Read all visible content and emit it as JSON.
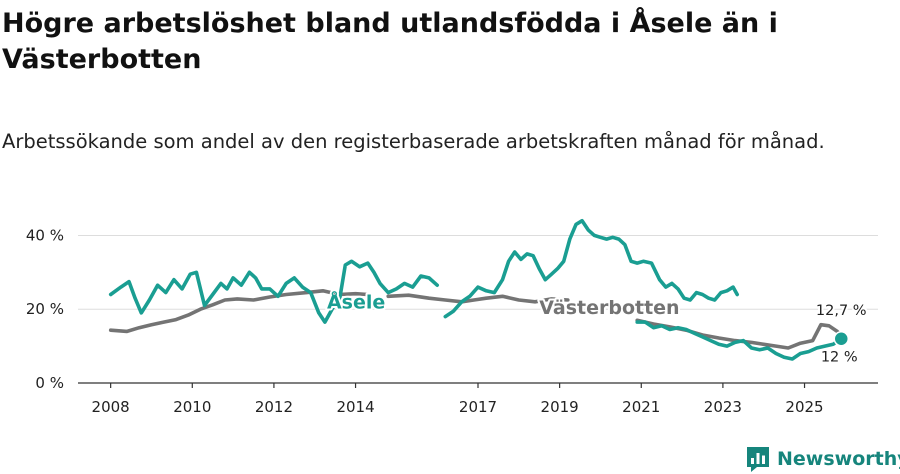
{
  "title": "Högre arbetslöshet bland utlandsfödda i Åsele än i Västerbotten",
  "subtitle": "Arbetssökande som andel av den registerbaserade arbetskraften månad för månad.",
  "brand": {
    "name": "Newsworthy"
  },
  "colors": {
    "asele": "#1a9e92",
    "vasterbotten": "#747474",
    "grid": "#dddddd",
    "text": "#222222"
  },
  "chart_data": {
    "type": "line",
    "x_unit": "year",
    "y_unit": "%",
    "xlim": [
      2007.2,
      2026.8
    ],
    "ylim": [
      0,
      45
    ],
    "x_ticks": [
      {
        "value": 2008,
        "label": "2008"
      },
      {
        "value": 2010,
        "label": "2010"
      },
      {
        "value": 2012,
        "label": "2012"
      },
      {
        "value": 2014,
        "label": "2014"
      },
      {
        "value": 2017,
        "label": "2017"
      },
      {
        "value": 2019,
        "label": "2019"
      },
      {
        "value": 2021,
        "label": "2021"
      },
      {
        "value": 2023,
        "label": "2023"
      },
      {
        "value": 2025,
        "label": "2025"
      }
    ],
    "y_ticks": [
      {
        "value": 0,
        "label": "0 %"
      },
      {
        "value": 20,
        "label": "20 %"
      },
      {
        "value": 40,
        "label": "40 %"
      }
    ],
    "series": [
      {
        "name": "Västerbotten",
        "color": "#747474",
        "label_at": [
          2018.5,
          20
        ],
        "end_label": "12,7 %",
        "segments": [
          [
            [
              2008.0,
              14.3
            ],
            [
              2008.4,
              14.0
            ],
            [
              2008.7,
              15.0
            ],
            [
              2009.0,
              15.8
            ],
            [
              2009.3,
              16.5
            ],
            [
              2009.6,
              17.2
            ],
            [
              2009.9,
              18.4
            ],
            [
              2010.2,
              20.0
            ],
            [
              2010.5,
              21.2
            ],
            [
              2010.8,
              22.5
            ],
            [
              2011.1,
              22.8
            ],
            [
              2011.5,
              22.5
            ],
            [
              2011.9,
              23.3
            ],
            [
              2012.3,
              24.0
            ],
            [
              2012.8,
              24.5
            ],
            [
              2013.2,
              25.0
            ],
            [
              2013.6,
              24.0
            ],
            [
              2014.0,
              24.2
            ],
            [
              2014.3,
              24.0
            ]
          ],
          [
            [
              2014.8,
              23.5
            ],
            [
              2015.3,
              23.8
            ],
            [
              2015.8,
              23.0
            ],
            [
              2016.2,
              22.5
            ],
            [
              2016.6,
              22.0
            ],
            [
              2016.9,
              22.5
            ],
            [
              2017.2,
              23.0
            ],
            [
              2017.6,
              23.5
            ],
            [
              2018.0,
              22.5
            ],
            [
              2018.4,
              22.0
            ],
            [
              2018.8,
              22.8
            ],
            [
              2019.2,
              22.5
            ]
          ],
          [
            [
              2020.9,
              17.0
            ],
            [
              2021.3,
              16.0
            ],
            [
              2021.7,
              15.2
            ],
            [
              2022.1,
              14.3
            ],
            [
              2022.5,
              13.0
            ],
            [
              2022.9,
              12.2
            ],
            [
              2023.3,
              11.5
            ],
            [
              2023.7,
              11.0
            ],
            [
              2024.0,
              10.5
            ],
            [
              2024.3,
              10.0
            ],
            [
              2024.6,
              9.5
            ],
            [
              2024.9,
              10.8
            ],
            [
              2025.2,
              11.5
            ],
            [
              2025.4,
              15.8
            ],
            [
              2025.6,
              15.5
            ],
            [
              2025.8,
              14.0
            ],
            [
              2025.9,
              12.7
            ]
          ]
        ]
      },
      {
        "name": "Åsele",
        "color": "#1a9e92",
        "label_at": [
          2013.3,
          21.5
        ],
        "end_label": "12 %",
        "segments": [
          [
            [
              2008.0,
              24.0
            ],
            [
              2008.25,
              26.0
            ],
            [
              2008.45,
              27.5
            ],
            [
              2008.6,
              23.0
            ],
            [
              2008.75,
              19.0
            ],
            [
              2008.95,
              22.5
            ],
            [
              2009.15,
              26.5
            ],
            [
              2009.35,
              24.5
            ],
            [
              2009.55,
              28.0
            ],
            [
              2009.75,
              25.5
            ],
            [
              2009.95,
              29.5
            ],
            [
              2010.1,
              30.0
            ],
            [
              2010.3,
              21.0
            ],
            [
              2010.5,
              24.0
            ],
            [
              2010.7,
              27.0
            ],
            [
              2010.85,
              25.5
            ],
            [
              2011.0,
              28.5
            ],
            [
              2011.2,
              26.5
            ],
            [
              2011.4,
              30.0
            ],
            [
              2011.55,
              28.5
            ],
            [
              2011.7,
              25.5
            ],
            [
              2011.9,
              25.5
            ],
            [
              2012.1,
              23.5
            ],
            [
              2012.3,
              27.0
            ],
            [
              2012.5,
              28.5
            ],
            [
              2012.7,
              26.0
            ],
            [
              2012.9,
              24.5
            ],
            [
              2013.1,
              19.0
            ],
            [
              2013.25,
              16.5
            ],
            [
              2013.45,
              20.5
            ],
            [
              2013.6,
              22.0
            ],
            [
              2013.75,
              32.0
            ],
            [
              2013.9,
              33.0
            ],
            [
              2014.1,
              31.5
            ],
            [
              2014.3,
              32.5
            ],
            [
              2014.45,
              30.0
            ],
            [
              2014.6,
              27.0
            ],
            [
              2014.8,
              24.5
            ],
            [
              2015.0,
              25.5
            ],
            [
              2015.2,
              27.0
            ],
            [
              2015.4,
              26.0
            ],
            [
              2015.6,
              29.0
            ],
            [
              2015.8,
              28.5
            ],
            [
              2016.0,
              26.5
            ]
          ],
          [
            [
              2016.2,
              18.0
            ],
            [
              2016.4,
              19.5
            ],
            [
              2016.6,
              22.0
            ],
            [
              2016.8,
              23.5
            ],
            [
              2017.0,
              26.0
            ],
            [
              2017.2,
              25.0
            ],
            [
              2017.4,
              24.5
            ],
            [
              2017.6,
              28.0
            ],
            [
              2017.75,
              33.0
            ],
            [
              2017.9,
              35.5
            ],
            [
              2018.05,
              33.5
            ],
            [
              2018.2,
              35.0
            ],
            [
              2018.35,
              34.5
            ],
            [
              2018.5,
              31.0
            ],
            [
              2018.65,
              28.0
            ],
            [
              2018.8,
              29.5
            ],
            [
              2018.95,
              31.0
            ],
            [
              2019.1,
              33.0
            ],
            [
              2019.25,
              39.0
            ],
            [
              2019.4,
              43.0
            ],
            [
              2019.55,
              44.0
            ],
            [
              2019.7,
              41.5
            ],
            [
              2019.85,
              40.0
            ],
            [
              2020.0,
              39.5
            ],
            [
              2020.15,
              39.0
            ],
            [
              2020.3,
              39.5
            ],
            [
              2020.45,
              39.0
            ],
            [
              2020.6,
              37.5
            ],
            [
              2020.75,
              33.0
            ],
            [
              2020.9,
              32.5
            ],
            [
              2021.05,
              33.0
            ],
            [
              2021.25,
              32.5
            ],
            [
              2021.45,
              28.0
            ],
            [
              2021.6,
              26.0
            ],
            [
              2021.75,
              27.0
            ],
            [
              2021.9,
              25.5
            ],
            [
              2022.05,
              23.0
            ],
            [
              2022.2,
              22.5
            ],
            [
              2022.35,
              24.5
            ],
            [
              2022.5,
              24.0
            ],
            [
              2022.65,
              23.0
            ],
            [
              2022.8,
              22.5
            ],
            [
              2022.95,
              24.5
            ],
            [
              2023.1,
              25.0
            ],
            [
              2023.25,
              26.0
            ],
            [
              2023.35,
              24.0
            ]
          ],
          [
            [
              2020.9,
              16.5
            ],
            [
              2021.1,
              16.5
            ],
            [
              2021.3,
              15.0
            ],
            [
              2021.5,
              15.5
            ],
            [
              2021.7,
              14.5
            ],
            [
              2021.9,
              15.0
            ],
            [
              2022.1,
              14.5
            ],
            [
              2022.3,
              13.5
            ],
            [
              2022.5,
              12.5
            ],
            [
              2022.7,
              11.5
            ],
            [
              2022.9,
              10.5
            ],
            [
              2023.1,
              10.0
            ],
            [
              2023.3,
              11.0
            ],
            [
              2023.5,
              11.5
            ],
            [
              2023.7,
              9.5
            ],
            [
              2023.9,
              9.0
            ],
            [
              2024.1,
              9.5
            ],
            [
              2024.3,
              8.0
            ],
            [
              2024.5,
              7.0
            ],
            [
              2024.7,
              6.5
            ],
            [
              2024.9,
              8.0
            ],
            [
              2025.1,
              8.5
            ],
            [
              2025.3,
              9.5
            ],
            [
              2025.5,
              10.0
            ],
            [
              2025.7,
              10.5
            ],
            [
              2025.9,
              12.0
            ]
          ]
        ]
      }
    ]
  }
}
